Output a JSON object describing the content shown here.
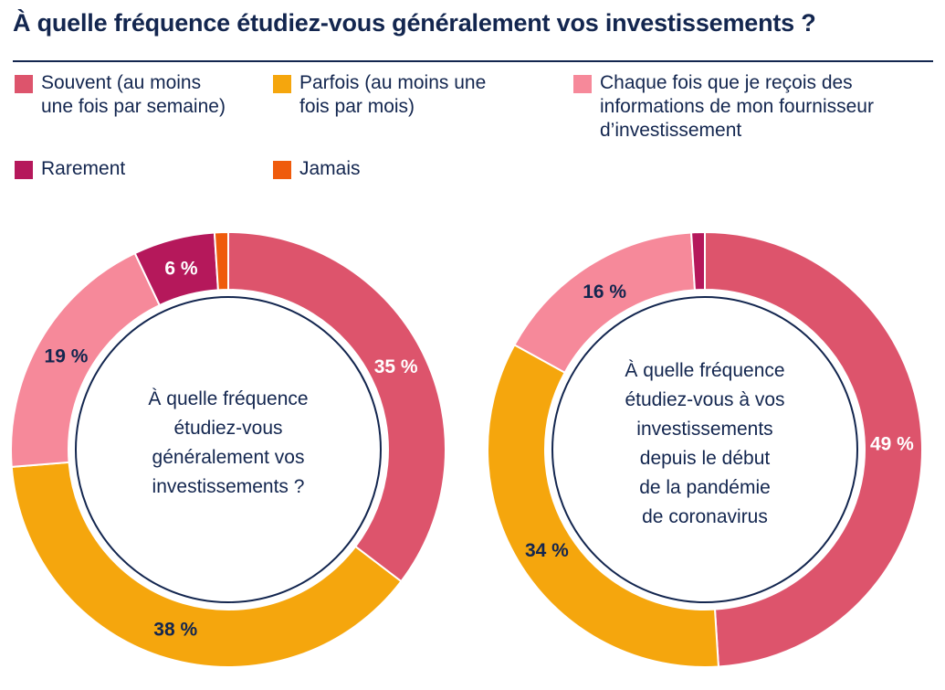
{
  "title": "À quelle fréquence étudiez-vous généralement vos investissements ?",
  "legend": [
    {
      "label_lines": [
        "Souvent (au moins",
        "une fois par semaine)"
      ],
      "color": "#dd546c"
    },
    {
      "label_lines": [
        "Parfois (au moins une",
        "fois par mois)"
      ],
      "color": "#f5a60d"
    },
    {
      "label_lines": [
        "Chaque fois que je reçois des",
        "informations de mon fournisseur",
        "d’investissement"
      ],
      "color": "#f6899a"
    },
    {
      "label_lines": [
        "Rarement"
      ],
      "color": "#b5185b"
    },
    {
      "label_lines": [
        "Jamais"
      ],
      "color": "#ef5b0c"
    }
  ],
  "chart_data": [
    {
      "type": "pie",
      "donut": true,
      "center_text": [
        "À quelle fréquence",
        "étudiez-vous",
        "généralement vos",
        "investissements ?"
      ],
      "categories": [
        "Souvent (au moins une fois par semaine)",
        "Parfois (au moins une fois par mois)",
        "Chaque fois que je reçois des informations de mon fournisseur d’investissement",
        "Rarement",
        "Jamais"
      ],
      "values": [
        35,
        38,
        19,
        6,
        1
      ],
      "labels": [
        "35 %",
        "38 %",
        "19 %",
        "6 %",
        ""
      ],
      "label_colors": [
        "#ffffff",
        "#13264f",
        "#13264f",
        "#ffffff",
        ""
      ]
    },
    {
      "type": "pie",
      "donut": true,
      "center_text": [
        "À quelle fréquence",
        "étudiez-vous à vos",
        "investissements",
        "depuis le début",
        "de la pandémie",
        "de coronavirus"
      ],
      "categories": [
        "Souvent (au moins une fois par semaine)",
        "Parfois (au moins une fois par mois)",
        "Chaque fois que je reçois des informations de mon fournisseur d’investissement",
        "Rarement",
        "Jamais"
      ],
      "values": [
        49,
        34,
        16,
        1,
        0
      ],
      "labels": [
        "49 %",
        "34 %",
        "16 %",
        "",
        ""
      ],
      "label_colors": [
        "#ffffff",
        "#13264f",
        "#13264f",
        "",
        ""
      ]
    }
  ]
}
